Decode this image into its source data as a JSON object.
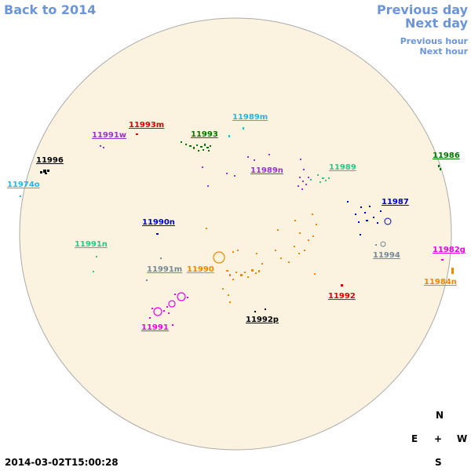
{
  "nav": {
    "back": "Back to 2014",
    "prev_day": "Previous day",
    "next_day": "Next day",
    "prev_hour": "Previous hour",
    "next_hour": "Next hour"
  },
  "disk_color": "#fbf3df",
  "disk_border": "#aaaaaa",
  "regions": [
    {
      "id": "r1",
      "label": "11993m",
      "color": "#e00000"
    },
    {
      "id": "r2",
      "label": "11991w",
      "color": "#9933cc"
    },
    {
      "id": "r3",
      "label": "11993",
      "color": "#007700"
    },
    {
      "id": "r4",
      "label": "11989m",
      "color": "#22b7e5"
    },
    {
      "id": "r5",
      "label": "11996",
      "color": "#000000"
    },
    {
      "id": "r6",
      "label": "11974o",
      "color": "#22b7e5"
    },
    {
      "id": "r7",
      "label": "11989n",
      "color": "#9933cc"
    },
    {
      "id": "r8",
      "label": "11989",
      "color": "#22cc88"
    },
    {
      "id": "r9",
      "label": "11986",
      "color": "#007700"
    },
    {
      "id": "r10",
      "label": "11987",
      "color": "#0000cc"
    },
    {
      "id": "r11",
      "label": "11990n",
      "color": "#0000cc"
    },
    {
      "id": "r12",
      "label": "11991n",
      "color": "#22cc88"
    },
    {
      "id": "r13",
      "label": "11994",
      "color": "#778899"
    },
    {
      "id": "r14",
      "label": "11982g",
      "color": "#ee00ee"
    },
    {
      "id": "r15",
      "label": "11991m",
      "color": "#778899"
    },
    {
      "id": "r16",
      "label": "11990",
      "color": "#ee8800"
    },
    {
      "id": "r17",
      "label": "11984n",
      "color": "#ee8800"
    },
    {
      "id": "r18",
      "label": "11992",
      "color": "#e00000"
    },
    {
      "id": "r19",
      "label": "11992p",
      "color": "#000000"
    },
    {
      "id": "r20",
      "label": "11991",
      "color": "#ee00ee"
    }
  ],
  "compass": {
    "north": "N",
    "south": "S",
    "east": "E",
    "west": "W",
    "center": "+"
  },
  "timestamp": "2014-03-02T15:00:28"
}
